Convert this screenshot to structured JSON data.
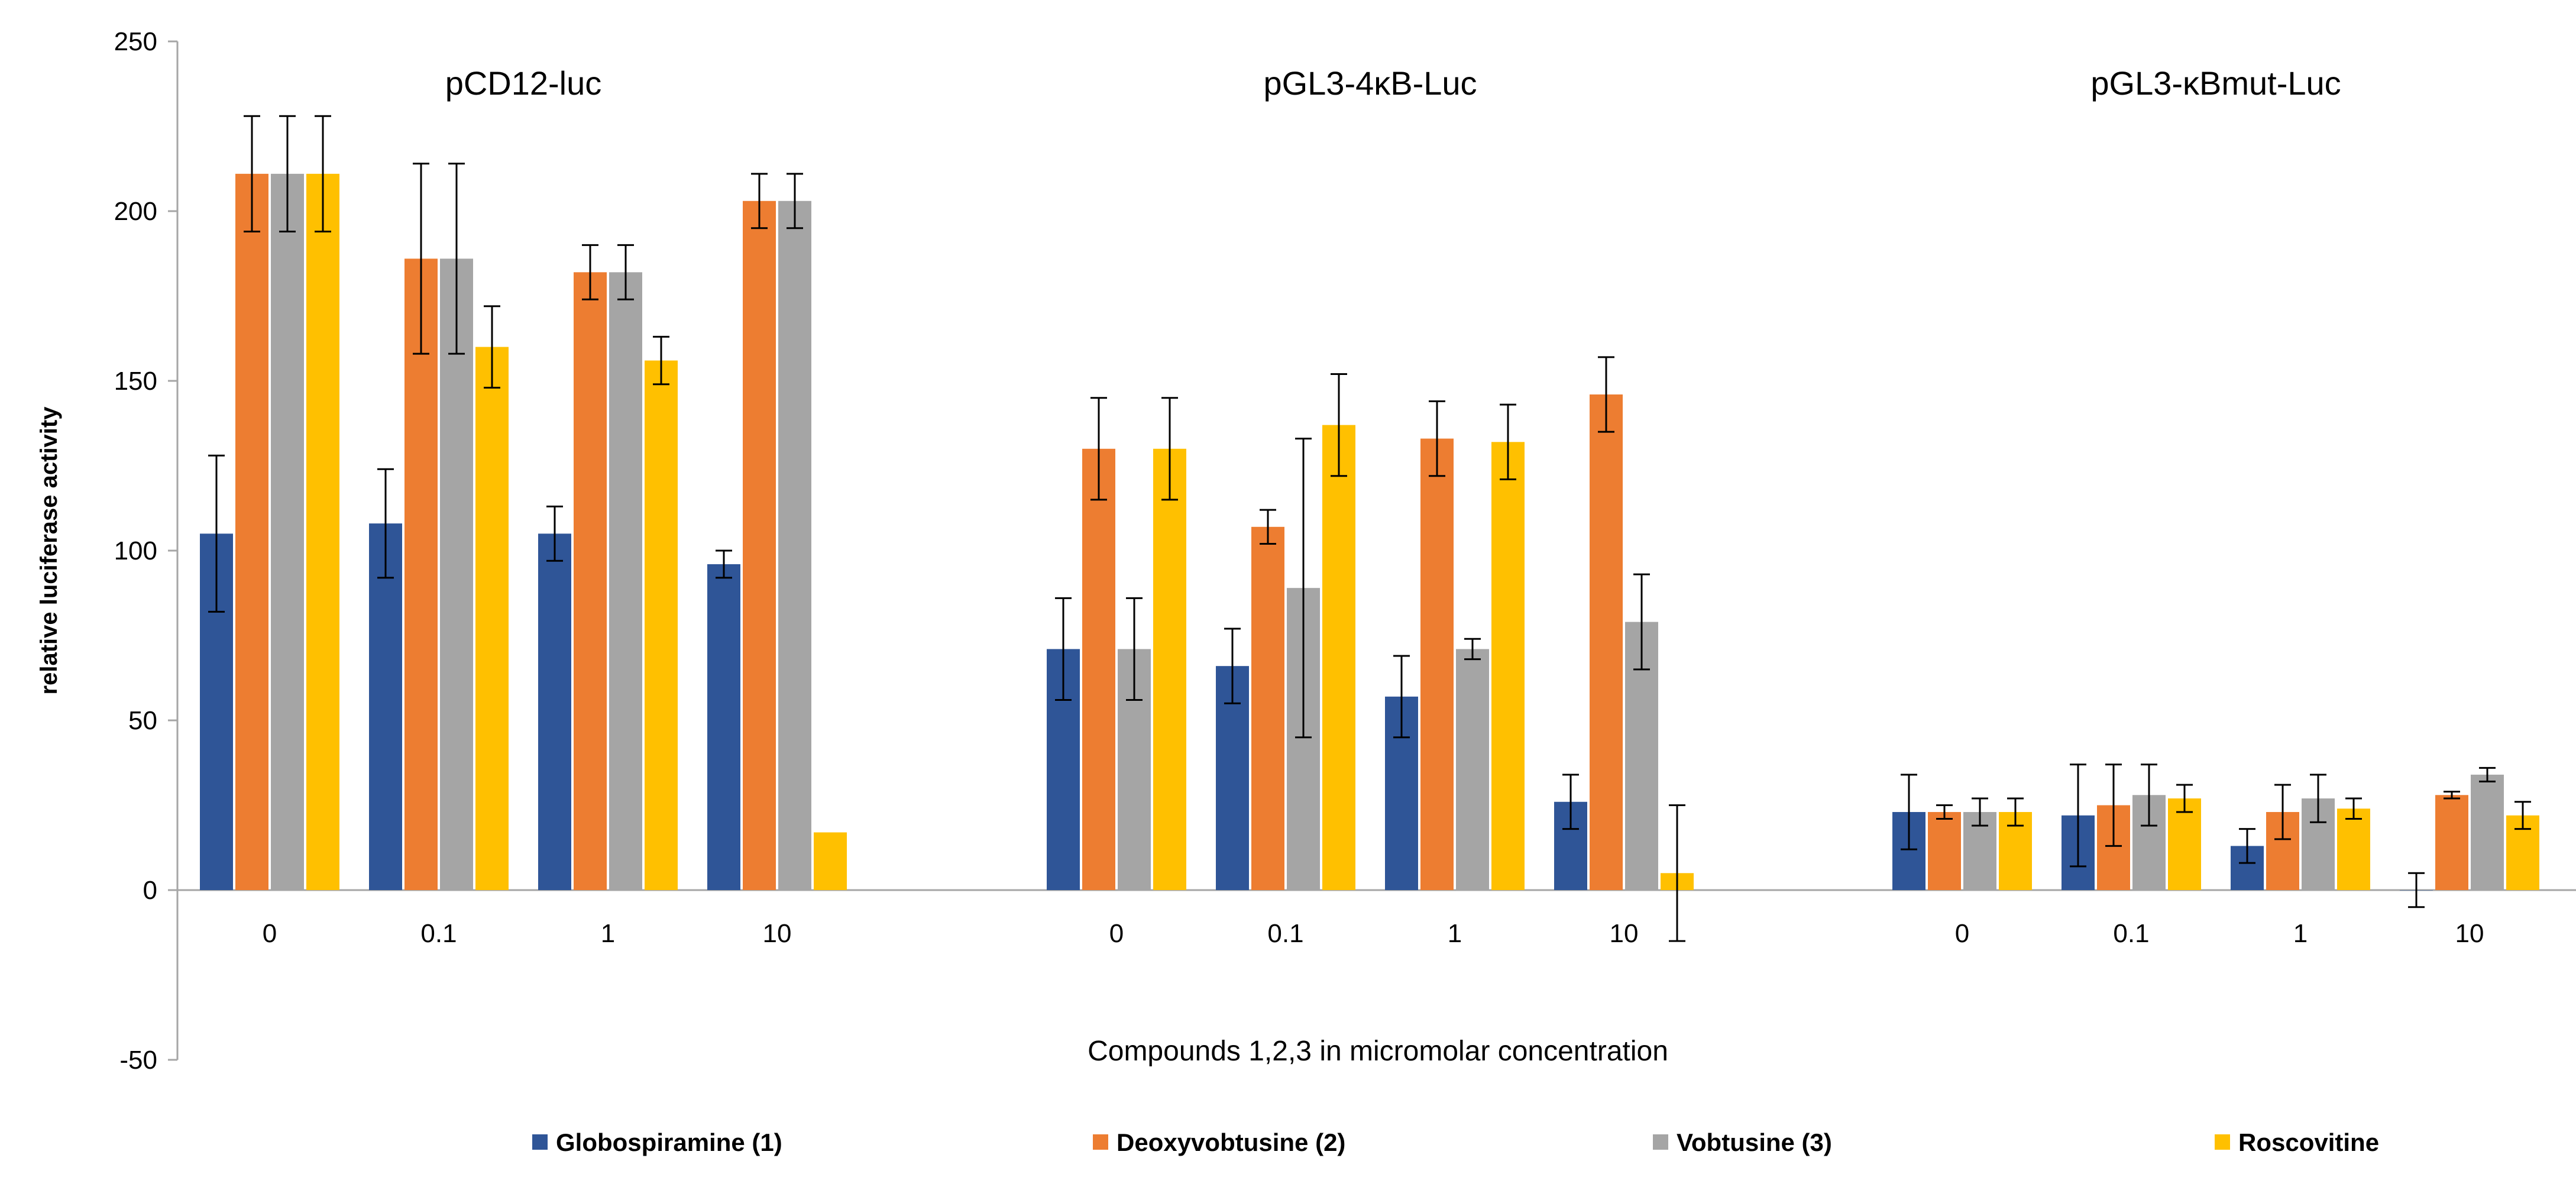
{
  "chart_data": {
    "type": "bar",
    "title": "",
    "xlabel": "Compounds 1,2,3 in micromolar concentration",
    "ylabel": "relative luciferase activity",
    "ylim": [
      -50,
      250
    ],
    "yticks": [
      "-50",
      "0",
      "50",
      "100",
      "150",
      "200",
      "250"
    ],
    "ytick_values": [
      -50,
      0,
      50,
      100,
      150,
      200,
      250
    ],
    "grid": false,
    "legend_position": "bottom",
    "series_names": [
      "Globospiramine (1)",
      "Deoxyvobtusine (2)",
      "Vobtusine (3)",
      "Roscovitine"
    ],
    "colors": [
      "#2F5597",
      "#ED7D31",
      "#A5A5A5",
      "#FFC000"
    ],
    "groups": [
      {
        "title": "pCD12-luc",
        "categories": [
          "0",
          "0.1",
          "1",
          "10"
        ],
        "values": [
          [
            105,
            211,
            211,
            211
          ],
          [
            108,
            186,
            186,
            160
          ],
          [
            105,
            182,
            182,
            156
          ],
          [
            96,
            203,
            203,
            17
          ]
        ],
        "errors": [
          [
            23,
            17,
            17,
            17
          ],
          [
            16,
            28,
            28,
            12
          ],
          [
            8,
            8,
            8,
            7
          ],
          [
            4,
            8,
            8,
            0
          ]
        ]
      },
      {
        "title": "pGL3-4κB-Luc",
        "categories": [
          "0",
          "0.1",
          "1",
          "10"
        ],
        "values": [
          [
            71,
            130,
            71,
            130
          ],
          [
            66,
            107,
            89,
            137
          ],
          [
            57,
            133,
            71,
            132
          ],
          [
            26,
            146,
            79,
            5
          ]
        ],
        "errors": [
          [
            15,
            15,
            15,
            15
          ],
          [
            11,
            5,
            44,
            15
          ],
          [
            12,
            11,
            3,
            11
          ],
          [
            8,
            11,
            14,
            20
          ]
        ]
      },
      {
        "title": "pGL3-κBmut-Luc",
        "categories": [
          "0",
          "0.1",
          "1",
          "10"
        ],
        "values": [
          [
            23,
            23,
            23,
            23
          ],
          [
            22,
            25,
            28,
            27
          ],
          [
            13,
            23,
            27,
            24
          ],
          [
            0,
            28,
            34,
            22
          ]
        ],
        "errors": [
          [
            11,
            2,
            4,
            4
          ],
          [
            15,
            12,
            9,
            4
          ],
          [
            5,
            8,
            7,
            3
          ],
          [
            5,
            1,
            2,
            4
          ]
        ]
      }
    ]
  }
}
